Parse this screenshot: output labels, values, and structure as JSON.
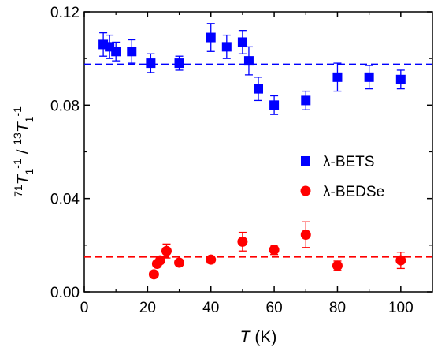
{
  "chart_data": {
    "type": "scatter",
    "xlim": [
      0,
      110
    ],
    "ylim": [
      0,
      0.12
    ],
    "x_ticks": [
      0,
      20,
      40,
      60,
      80,
      100
    ],
    "x_tick_labels": [
      "0",
      "20",
      "40",
      "60",
      "80",
      "100"
    ],
    "y_ticks": [
      0.0,
      0.04,
      0.08,
      0.12
    ],
    "y_tick_labels": [
      "0.00",
      "0.04",
      "0.08",
      "0.12"
    ],
    "xlabel": {
      "italic": "T",
      "rest": " (K)"
    },
    "ylabel": {
      "sup1": "71",
      "T1": "T",
      "sub1": "1",
      "sup2": "-1",
      "slash": " / ",
      "sup3": "13",
      "T2": "T",
      "sub2": "1",
      "sup4": "-1"
    },
    "grid": false,
    "legend_position": "center-right",
    "series": [
      {
        "name": "λ-BETS",
        "marker": "square",
        "color": "#0000ff",
        "fit_level": 0.0975,
        "x": [
          6,
          8,
          10,
          15,
          21,
          30,
          40,
          45,
          50,
          52,
          55,
          60,
          70,
          80,
          90,
          100
        ],
        "y": [
          0.106,
          0.105,
          0.103,
          0.103,
          0.098,
          0.098,
          0.109,
          0.105,
          0.107,
          0.099,
          0.087,
          0.08,
          0.082,
          0.092,
          0.092,
          0.091
        ],
        "err": [
          0.005,
          0.005,
          0.004,
          0.005,
          0.004,
          0.003,
          0.006,
          0.005,
          0.005,
          0.006,
          0.005,
          0.004,
          0.004,
          0.006,
          0.005,
          0.004
        ]
      },
      {
        "name": "λ-BEDSe",
        "marker": "circle",
        "color": "#ff0000",
        "fit_level": 0.015,
        "x": [
          22,
          23,
          24,
          26,
          30,
          40,
          50,
          60,
          70,
          80,
          100
        ],
        "y": [
          0.0075,
          0.012,
          0.0135,
          0.0175,
          0.0125,
          0.0138,
          0.0215,
          0.018,
          0.0245,
          0.0112,
          0.0135
        ],
        "err": [
          0.001,
          0.001,
          0.001,
          0.003,
          0.001,
          0.0015,
          0.004,
          0.002,
          0.0055,
          0.002,
          0.0035
        ]
      }
    ]
  }
}
